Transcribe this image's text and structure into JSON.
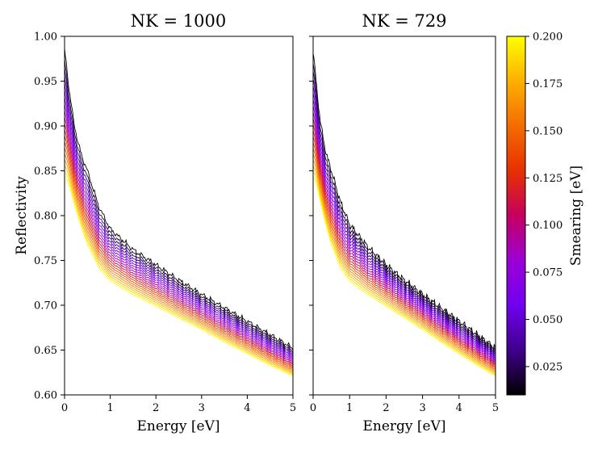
{
  "chart_data": {
    "type": "line",
    "shared_yaxis": {
      "label": "Reflectivity",
      "ylim": [
        0.6,
        1.0
      ],
      "ticks": [
        "0.60",
        "0.65",
        "0.70",
        "0.75",
        "0.80",
        "0.85",
        "0.90",
        "0.95",
        "1.00"
      ]
    },
    "xaxis": {
      "label": "Energy [eV]",
      "xlim": [
        0,
        5
      ],
      "ticks": [
        "0",
        "1",
        "2",
        "3",
        "4",
        "5"
      ]
    },
    "smearing_range": [
      0.01,
      0.2
    ],
    "num_curves": 20,
    "panels": [
      {
        "title": "NK = 1000",
        "noise_amplitude": 0.0035,
        "series_template": {
          "x": [
            0,
            0.05,
            0.1,
            0.2,
            0.3,
            0.4,
            0.5,
            0.75,
            1.0,
            1.5,
            2.0,
            2.5,
            3.0,
            3.5,
            4.0,
            4.5,
            5.0
          ],
          "y_sharp": [
            0.985,
            0.965,
            0.94,
            0.905,
            0.88,
            0.863,
            0.85,
            0.81,
            0.785,
            0.762,
            0.745,
            0.728,
            0.712,
            0.697,
            0.682,
            0.667,
            0.652
          ],
          "y_smooth": [
            0.843,
            0.84,
            0.834,
            0.815,
            0.798,
            0.782,
            0.768,
            0.742,
            0.727,
            0.712,
            0.699,
            0.686,
            0.673,
            0.659,
            0.646,
            0.633,
            0.621
          ]
        }
      },
      {
        "title": "NK = 729",
        "noise_amplitude": 0.0045,
        "series_template": {
          "x": [
            0,
            0.05,
            0.1,
            0.2,
            0.3,
            0.4,
            0.5,
            0.75,
            1.0,
            1.5,
            2.0,
            2.5,
            3.0,
            3.5,
            4.0,
            4.5,
            5.0
          ],
          "y_sharp": [
            0.985,
            0.965,
            0.94,
            0.905,
            0.88,
            0.863,
            0.85,
            0.815,
            0.79,
            0.765,
            0.745,
            0.728,
            0.712,
            0.697,
            0.682,
            0.667,
            0.652
          ],
          "y_smooth": [
            0.843,
            0.84,
            0.834,
            0.815,
            0.798,
            0.782,
            0.768,
            0.742,
            0.727,
            0.712,
            0.699,
            0.686,
            0.673,
            0.659,
            0.646,
            0.633,
            0.621
          ]
        }
      }
    ],
    "colorbar": {
      "label": "Smearing [eV]",
      "range": [
        0.01,
        0.2
      ],
      "ticks": [
        "0.025",
        "0.050",
        "0.075",
        "0.100",
        "0.125",
        "0.150",
        "0.175",
        "0.200"
      ],
      "colormap": "gnuplot",
      "color_stops": [
        "#000000",
        "#40008c",
        "#7000f0",
        "#9c00d4",
        "#c50060",
        "#e63000",
        "#f46c00",
        "#fcb000",
        "#ffff00"
      ]
    }
  }
}
